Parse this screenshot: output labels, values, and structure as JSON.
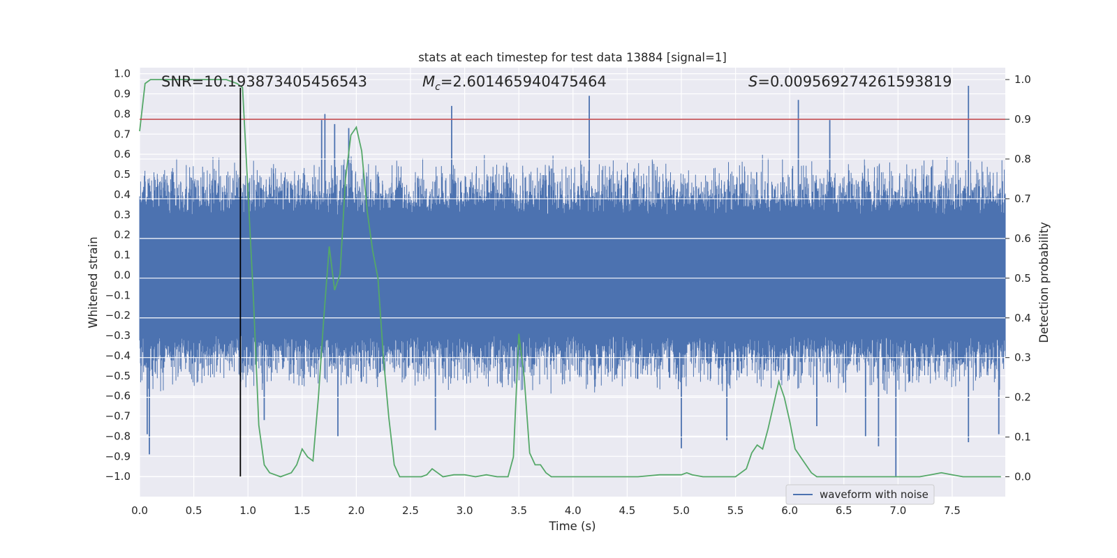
{
  "chart_data": {
    "type": "line",
    "title": "stats at each timestep for test data 13884 [signal=1]",
    "xlabel": "Time (s)",
    "ylabel": "Whitened strain",
    "y2label": "Detection probability",
    "xlim": [
      0.0,
      7.99
    ],
    "ylim": [
      -1.1,
      1.03
    ],
    "y2lim": [
      -0.05,
      1.03
    ],
    "xticks": [
      "0.0",
      "0.5",
      "1.0",
      "1.5",
      "2.0",
      "2.5",
      "3.0",
      "3.5",
      "4.0",
      "4.5",
      "5.0",
      "5.5",
      "6.0",
      "6.5",
      "7.0",
      "7.5"
    ],
    "yticks": [
      "1.0",
      "0.9",
      "0.8",
      "0.7",
      "0.6",
      "0.5",
      "0.4",
      "0.3",
      "0.2",
      "0.1",
      "0.0",
      "-0.1",
      "-0.2",
      "-0.3",
      "-0.4",
      "-0.5",
      "-0.6",
      "-0.7",
      "-0.8",
      "-0.9",
      "-1.0"
    ],
    "y2ticks": [
      "1.0",
      "0.9",
      "0.8",
      "0.7",
      "0.6",
      "0.5",
      "0.4",
      "0.3",
      "0.2",
      "0.1",
      "0.0"
    ],
    "grid": true,
    "legend": {
      "position": "lower-right",
      "entries": [
        "waveform with noise"
      ]
    },
    "annotations": {
      "snr": "SNR=10.193873405456543",
      "mc_symbol": "M",
      "mc_subscript": "c",
      "mc_value": "=2.601465940475464",
      "s_symbol": "S",
      "s_value": "=0.009569274261593819"
    },
    "threshold": {
      "name": "detection threshold",
      "y2": 0.9,
      "color": "#c44e52"
    },
    "merger_marker": {
      "name": "merger time",
      "x": 0.93,
      "y_range": [
        -1.0,
        0.93
      ],
      "color": "#000000"
    },
    "waveform": {
      "name": "waveform with noise",
      "color": "#4c72b0",
      "envelope_core": [
        -0.3,
        0.3
      ],
      "typical_peak": 0.55,
      "spikes": [
        {
          "x": 1.68,
          "y": 0.77
        },
        {
          "x": 1.71,
          "y": 0.8
        },
        {
          "x": 1.8,
          "y": 0.75
        },
        {
          "x": 1.93,
          "y": 0.73
        },
        {
          "x": 2.88,
          "y": 0.84
        },
        {
          "x": 4.15,
          "y": 0.89
        },
        {
          "x": 6.08,
          "y": 0.87
        },
        {
          "x": 6.37,
          "y": 0.77
        },
        {
          "x": 7.65,
          "y": 0.94
        },
        {
          "x": 0.07,
          "y": -0.79
        },
        {
          "x": 0.09,
          "y": -0.89
        },
        {
          "x": 1.83,
          "y": -0.8
        },
        {
          "x": 2.73,
          "y": -0.77
        },
        {
          "x": 3.5,
          "y": -0.15
        },
        {
          "x": 5.0,
          "y": -0.86
        },
        {
          "x": 5.42,
          "y": -0.82
        },
        {
          "x": 6.7,
          "y": -0.8
        },
        {
          "x": 6.82,
          "y": -0.85
        },
        {
          "x": 6.98,
          "y": -1.0
        },
        {
          "x": 7.65,
          "y": -0.83
        },
        {
          "x": 7.93,
          "y": -0.79
        },
        {
          "x": 1.15,
          "y": -0.72
        },
        {
          "x": 6.25,
          "y": -0.75
        }
      ]
    },
    "detection_probability": {
      "name": "detection probability",
      "color": "#55a868",
      "x": [
        0.0,
        0.05,
        0.1,
        0.2,
        0.4,
        0.6,
        0.8,
        0.9,
        0.95,
        1.0,
        1.05,
        1.1,
        1.15,
        1.2,
        1.3,
        1.4,
        1.45,
        1.5,
        1.55,
        1.6,
        1.65,
        1.7,
        1.75,
        1.8,
        1.85,
        1.9,
        1.95,
        2.0,
        2.05,
        2.1,
        2.15,
        2.2,
        2.25,
        2.3,
        2.35,
        2.4,
        2.5,
        2.6,
        2.65,
        2.7,
        2.75,
        2.8,
        2.9,
        3.0,
        3.1,
        3.2,
        3.3,
        3.4,
        3.45,
        3.5,
        3.55,
        3.6,
        3.65,
        3.7,
        3.75,
        3.8,
        3.85,
        3.9,
        4.0,
        4.2,
        4.4,
        4.6,
        4.8,
        5.0,
        5.05,
        5.1,
        5.2,
        5.3,
        5.4,
        5.5,
        5.6,
        5.65,
        5.7,
        5.75,
        5.8,
        5.85,
        5.9,
        5.95,
        6.0,
        6.05,
        6.1,
        6.15,
        6.2,
        6.25,
        6.3,
        6.4,
        6.6,
        6.8,
        7.0,
        7.2,
        7.3,
        7.4,
        7.5,
        7.6,
        7.8,
        7.95
      ],
      "y": [
        0.87,
        0.99,
        1.0,
        1.0,
        1.0,
        1.0,
        1.0,
        0.99,
        0.98,
        0.72,
        0.45,
        0.13,
        0.03,
        0.01,
        0.0,
        0.01,
        0.03,
        0.07,
        0.05,
        0.04,
        0.2,
        0.4,
        0.58,
        0.47,
        0.51,
        0.75,
        0.86,
        0.88,
        0.82,
        0.67,
        0.57,
        0.5,
        0.3,
        0.15,
        0.03,
        0.0,
        0.0,
        0.0,
        0.005,
        0.02,
        0.01,
        0.0,
        0.005,
        0.005,
        0.0,
        0.005,
        0.0,
        0.0,
        0.05,
        0.36,
        0.25,
        0.06,
        0.03,
        0.03,
        0.01,
        0.0,
        0.0,
        0.0,
        0.0,
        0.0,
        0.0,
        0.0,
        0.005,
        0.005,
        0.01,
        0.005,
        0.0,
        0.0,
        0.0,
        0.0,
        0.02,
        0.06,
        0.08,
        0.07,
        0.12,
        0.18,
        0.24,
        0.2,
        0.14,
        0.07,
        0.05,
        0.03,
        0.01,
        0.0,
        0.0,
        0.0,
        0.0,
        0.0,
        0.0,
        0.0,
        0.005,
        0.01,
        0.005,
        0.0,
        0.0,
        0.0
      ]
    }
  }
}
